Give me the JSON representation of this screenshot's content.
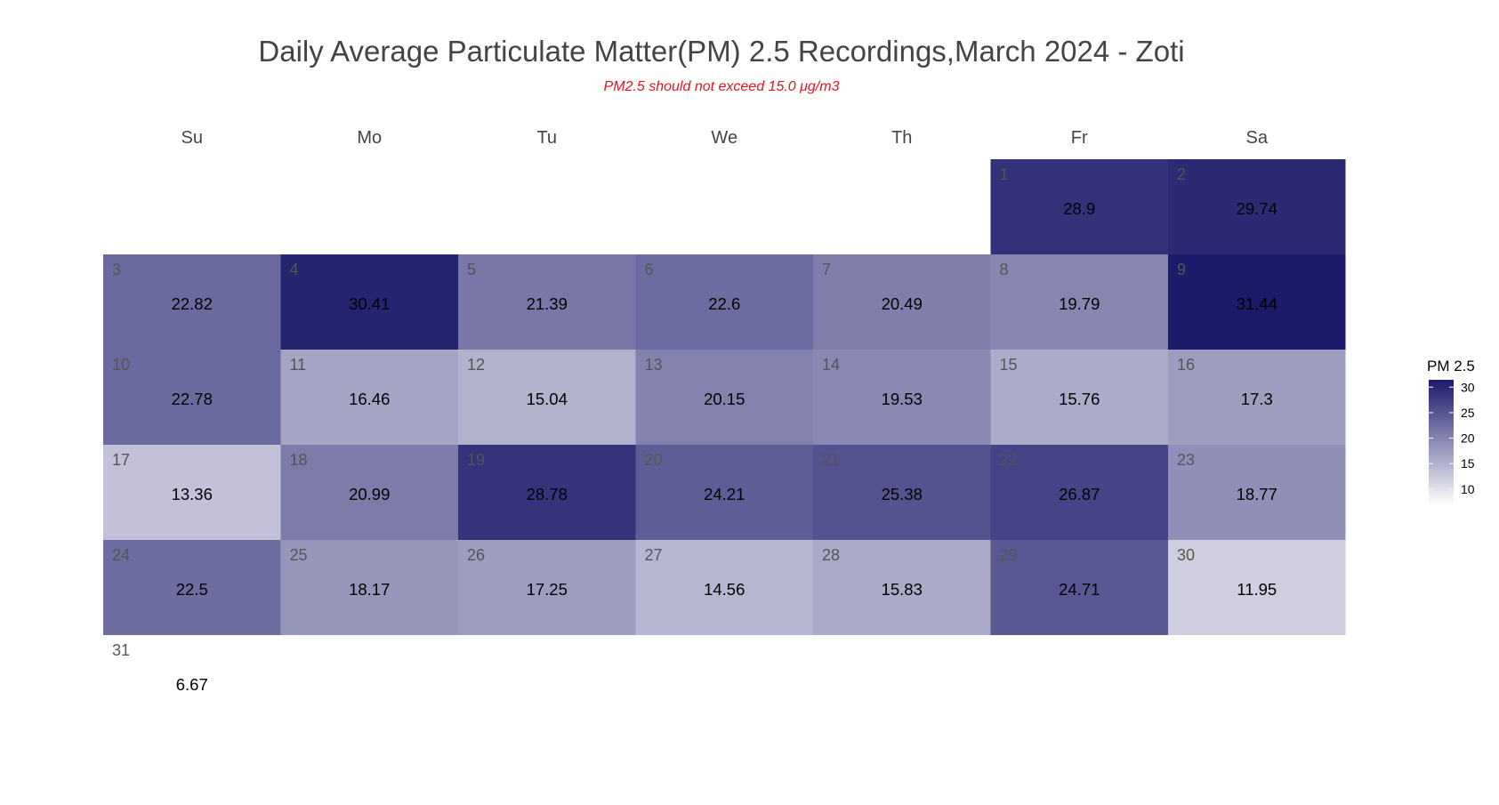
{
  "chart_data": {
    "type": "heatmap",
    "title": "Daily Average Particulate Matter(PM) 2.5 Recordings,March 2024 - Zoti",
    "subtitle": "PM2.5 should not exceed 15.0 μg/m3",
    "weekdays": [
      "Su",
      "Mo",
      "Tu",
      "We",
      "Th",
      "Fr",
      "Sa"
    ],
    "first_weekday_index": 5,
    "days": [
      1,
      2,
      3,
      4,
      5,
      6,
      7,
      8,
      9,
      10,
      11,
      12,
      13,
      14,
      15,
      16,
      17,
      18,
      19,
      20,
      21,
      22,
      23,
      24,
      25,
      26,
      27,
      28,
      29,
      30,
      31
    ],
    "values": [
      28.9,
      29.74,
      22.82,
      30.41,
      21.39,
      22.6,
      20.49,
      19.79,
      31.44,
      22.78,
      16.46,
      15.04,
      20.15,
      19.53,
      15.76,
      17.3,
      13.36,
      20.99,
      28.78,
      24.21,
      25.38,
      26.87,
      18.77,
      22.5,
      18.17,
      17.25,
      14.56,
      15.83,
      24.71,
      11.95,
      6.67
    ],
    "value_labels": [
      "28.9",
      "29.74",
      "22.82",
      "30.41",
      "21.39",
      "22.6",
      "20.49",
      "19.79",
      "31.44",
      "22.78",
      "16.46",
      "15.04",
      "20.15",
      "19.53",
      "15.76",
      "17.3",
      "13.36",
      "20.99",
      "28.78",
      "24.21",
      "25.38",
      "26.87",
      "18.77",
      "22.5",
      "18.17",
      "17.25",
      "14.56",
      "15.83",
      "24.71",
      "11.95",
      "6.67"
    ],
    "legend": {
      "title": "PM 2.5",
      "ticks": [
        30,
        25,
        20,
        15,
        10
      ],
      "range": [
        6.67,
        31.44
      ],
      "position": "right"
    },
    "colors": {
      "low": "#ffffff",
      "high": "#1c1a6b"
    }
  }
}
